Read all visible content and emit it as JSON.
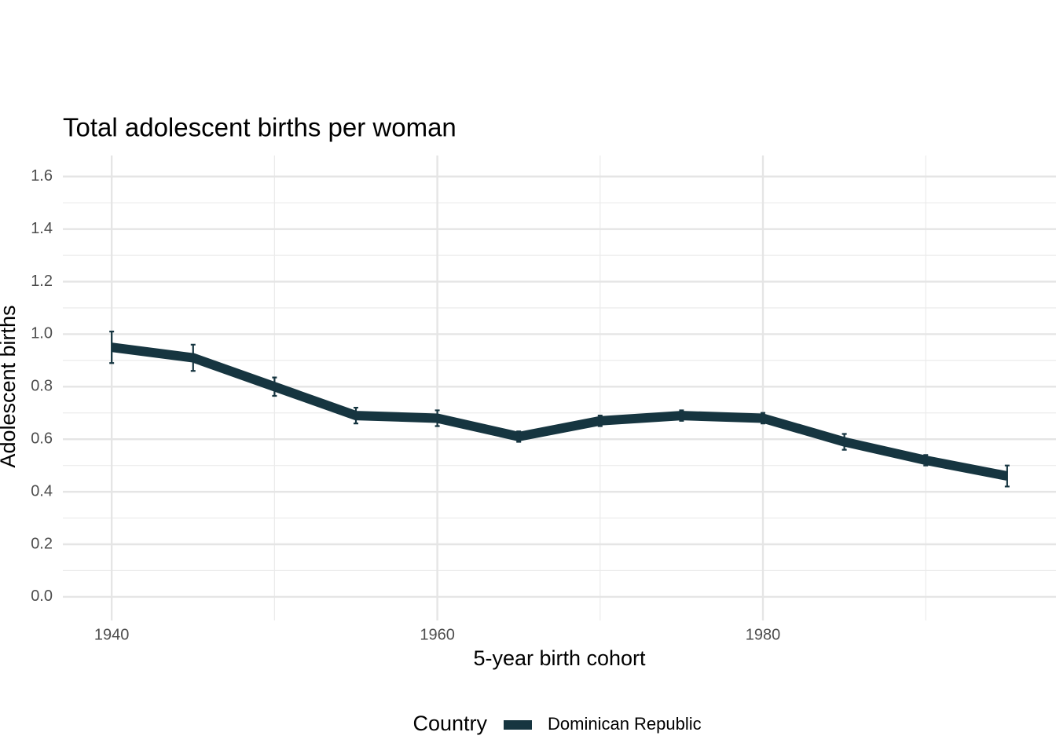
{
  "chart_data": {
    "type": "line",
    "title": "Total adolescent births per woman",
    "x_label": "5-year birth cohort",
    "y_label": "Adolescent births",
    "x": [
      1940,
      1945,
      1950,
      1955,
      1960,
      1965,
      1970,
      1975,
      1980,
      1985,
      1990,
      1995
    ],
    "series": [
      {
        "name": "Dominican Republic",
        "color": "#163540",
        "values": [
          0.95,
          0.91,
          0.8,
          0.69,
          0.68,
          0.61,
          0.67,
          0.69,
          0.68,
          0.59,
          0.52,
          0.46
        ],
        "errors": [
          0.06,
          0.05,
          0.035,
          0.03,
          0.03,
          0.02,
          0.02,
          0.02,
          0.02,
          0.03,
          0.02,
          0.04
        ]
      }
    ],
    "legend_title": "Country",
    "legend_position": "bottom",
    "xlim": [
      1937,
      1998
    ],
    "xticks": [
      1940,
      1960,
      1980
    ],
    "minor_xticks": [
      1950,
      1970,
      1990
    ],
    "ylim": [
      -0.09,
      1.68
    ],
    "yticks": [
      {
        "value": 0,
        "label": "0.0"
      },
      0.2,
      0.4,
      0.6,
      0.8,
      {
        "value": 1,
        "label": "1.0"
      },
      1.2,
      1.4,
      1.6
    ],
    "minor_yticks": [
      0.1,
      0.3,
      0.5,
      0.7,
      0.9,
      1.1,
      1.3,
      1.5
    ],
    "grid": true
  }
}
